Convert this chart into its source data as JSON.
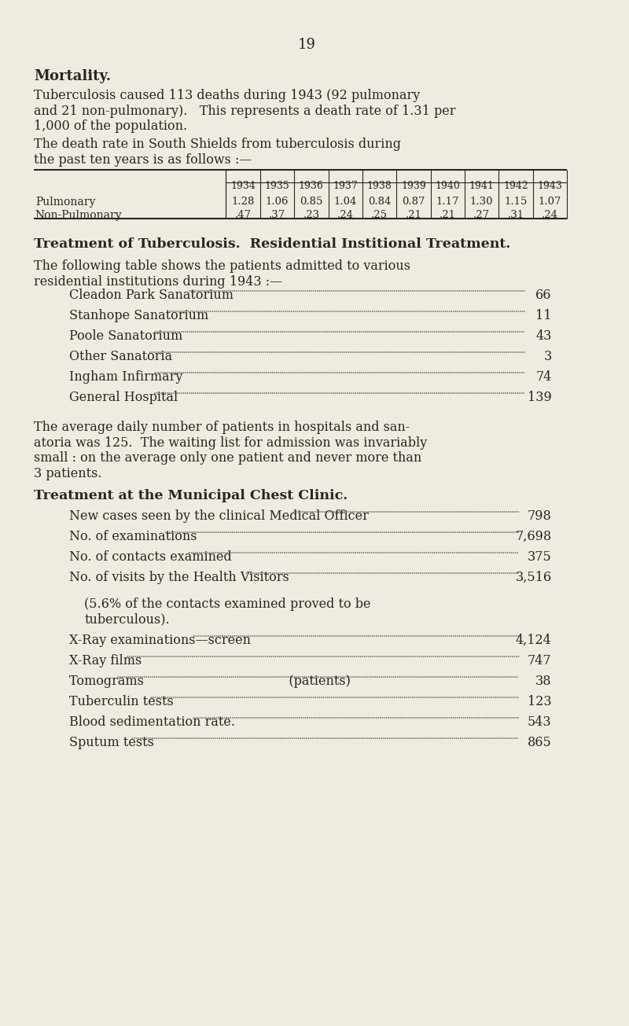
{
  "bg_color": "#f0ebe0",
  "text_color": "#2a2520",
  "page_number": "19",
  "section1_title": "Mortality.",
  "para1": "Tuberculosis caused 113 deaths during 1943 (92 pulmonary\nand 21 non-pulmonary).   This represents a death rate of 1.31 per\n1,000 of the population.",
  "para2": "The death rate in South Shields from tuberculosis during\nthe past ten years is as follows :—",
  "table_years": [
    "1934",
    "1935",
    "1936",
    "1937",
    "1938",
    "1939",
    "1940",
    "1941",
    "1942",
    "1943"
  ],
  "table_row1_label": "Pulmonary",
  "table_row1_values": [
    "1.28",
    "1.06",
    "0.85",
    "1.04",
    "0.84",
    "0.87",
    "1.17",
    "1.30",
    "1.15",
    "1.07"
  ],
  "table_row2_label": "Non-Pulmonary",
  "table_row2_values": [
    ".47",
    ".37",
    ".23",
    ".24",
    ".25",
    ".21",
    ".21",
    ".27",
    ".31",
    ".24"
  ],
  "section2_title": "Treatment of Tuberculosis.  Residential Institional Treatment.",
  "para3": "The following table shows the patients admitted to various\nresidential institutions during 1943 :—",
  "institutions": [
    [
      "Cleadon Park Sanatorium",
      "66"
    ],
    [
      "Stanhope Sanatorium",
      "11"
    ],
    [
      "Poole Sanatorium",
      "43"
    ],
    [
      "Other Sanatoria",
      "3"
    ],
    [
      "Ingham Infirmary",
      "74"
    ],
    [
      "General Hospital",
      "139"
    ]
  ],
  "para4": "The average daily number of patients in hospitals and san-\natoria was 125.  The waiting list for admission was invariably\nsmall : on the average only one patient and never more than\n3 patients.",
  "section3_title": "Treatment at the Municipal Chest Clinic.",
  "clinic_items": [
    [
      "New cases seen by the clinical Medical Officer",
      "798"
    ],
    [
      "No. of examinations",
      "7,698"
    ],
    [
      "No. of contacts examined",
      "375"
    ],
    [
      "No. of visits by the Health Visitors",
      "3,516"
    ]
  ],
  "clinic_note": "(5.6% of the contacts examined proved to be\ntuberculous).",
  "clinic_items2": [
    [
      "X-Ray examinations—screen",
      "4,124"
    ],
    [
      "X-Ray films",
      "747"
    ],
    [
      "Tomograms                                    (patients)",
      "38"
    ],
    [
      "Tuberculin tests",
      "123"
    ],
    [
      "Blood sedimentation rate.",
      "543"
    ],
    [
      "Sputum tests",
      "865"
    ]
  ]
}
